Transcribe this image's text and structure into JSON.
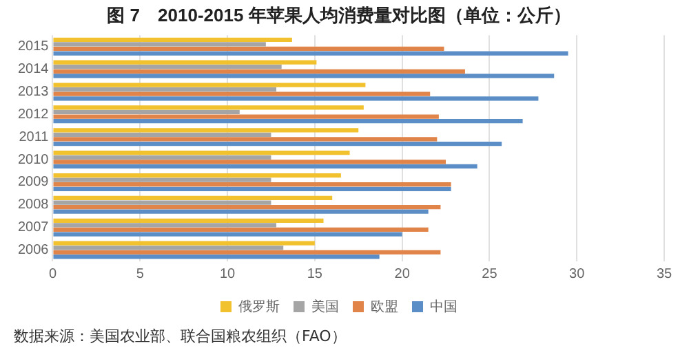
{
  "chart_data": {
    "type": "bar",
    "orientation": "horizontal",
    "title": "图 7　2010-2015 年苹果人均消费量对比图（单位：公斤）",
    "categories": [
      "2015",
      "2014",
      "2013",
      "2012",
      "2011",
      "2010",
      "2009",
      "2008",
      "2007",
      "2006"
    ],
    "series": [
      {
        "name": "俄罗斯",
        "color": "#f2c12e",
        "values": [
          13.7,
          15.1,
          17.9,
          17.8,
          17.5,
          17.0,
          16.5,
          16.0,
          15.5,
          15.0
        ]
      },
      {
        "name": "美国",
        "color": "#a5a5a5",
        "values": [
          12.2,
          13.1,
          12.8,
          10.7,
          12.5,
          12.5,
          12.5,
          12.5,
          12.8,
          13.2
        ]
      },
      {
        "name": "欧盟",
        "color": "#e0844a",
        "values": [
          22.4,
          23.6,
          21.6,
          22.1,
          22.0,
          22.5,
          22.8,
          22.2,
          21.5,
          22.2
        ]
      },
      {
        "name": "中国",
        "color": "#5b8ec6",
        "values": [
          29.5,
          28.7,
          27.8,
          26.9,
          25.7,
          24.3,
          22.8,
          21.5,
          20.0,
          18.7
        ]
      }
    ],
    "xlim": [
      0,
      35
    ],
    "xticks": [
      0,
      5,
      10,
      15,
      20,
      25,
      30,
      35
    ],
    "grid": "x",
    "legend": "bottom",
    "annotations": [
      "数据来源：美国农业部、联合国粮农组织（FAO）"
    ]
  }
}
